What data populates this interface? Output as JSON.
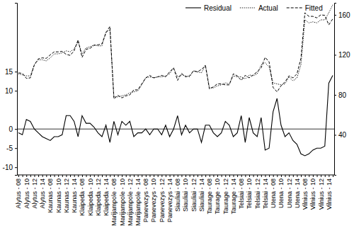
{
  "chart_data": {
    "type": "line",
    "categories": [
      "Alytus - 08",
      null,
      "Alytus - 10",
      null,
      "Alytus - 12",
      null,
      "Alytus - 14",
      null,
      "Kaunas - 08",
      null,
      "Kaunas - 10",
      null,
      "Kaunas - 12",
      null,
      "Kaunas - 14",
      null,
      "Klaipeda - 08",
      null,
      "Klaipeda - 10",
      null,
      "Klaipeda - 12",
      null,
      "Klaipeda - 14",
      null,
      "Marijampole - 08",
      null,
      "Marijampole - 10",
      null,
      "Marijampole - 12",
      null,
      "Marijampole - 14",
      null,
      "Panevezys - 08",
      null,
      "Panevezys - 10",
      null,
      "Panevezys - 12",
      null,
      "Panevezys - 14",
      null,
      "Siauliai - 08",
      null,
      "Siauliai - 10",
      null,
      "Siauliai - 12",
      null,
      "Siauliai - 14",
      null,
      "Taurage - 08",
      null,
      "Taurage - 10",
      null,
      "Taurage - 12",
      null,
      "Taurage - 14",
      null,
      "Telsiai - 08",
      null,
      "Telsiai - 10",
      null,
      "Telsiai - 12",
      null,
      "Telsiai - 14",
      null,
      "Utena - 08",
      null,
      "Utena - 10",
      null,
      "Utena - 12",
      null,
      "Utena - 14",
      null,
      "Vilnius - 08",
      null,
      "Vilnius - 10",
      null,
      "Vilnius - 12",
      null,
      "Vilnius - 14",
      null
    ],
    "series": [
      {
        "name": "Residual",
        "color": "#000000",
        "line_style": "solid",
        "values": [
          -1,
          -1.5,
          2.5,
          2,
          0,
          -1,
          -2,
          -2.5,
          -3,
          -2,
          -2,
          -1.5,
          3.5,
          3.5,
          2,
          -2,
          3.5,
          1.5,
          1.5,
          0.5,
          -1,
          -2,
          1,
          -3.5,
          2,
          -1.5,
          2,
          1,
          2,
          -2,
          -1,
          -1,
          0,
          -1.5,
          0,
          0,
          -1.5,
          1,
          -2,
          0,
          3.5,
          -1.5,
          1,
          -1,
          0,
          0,
          -3.5,
          1,
          1,
          -1,
          -2,
          -1,
          2,
          1,
          -2,
          -1,
          3.5,
          -3.5,
          3,
          -1,
          -2,
          3,
          -5.5,
          -5,
          4.5,
          8,
          1,
          -2,
          -1,
          -3,
          -4,
          -6.5,
          -7,
          -6.5,
          -5.5,
          -5,
          -5,
          -4.5,
          12,
          14
        ]
      },
      {
        "name": "Actual",
        "color": "#000000",
        "line_style": "dotted",
        "axis": "y2",
        "values": [
          101,
          100,
          99,
          99,
          110,
          115,
          115,
          114,
          117,
          121,
          121,
          122,
          124,
          123,
          126,
          133,
          121,
          127,
          128,
          130,
          129,
          129,
          143,
          145,
          78,
          78,
          79,
          80,
          82,
          83,
          84,
          90,
          97,
          98,
          97,
          98,
          98,
          99,
          101,
          107,
          98,
          100,
          99,
          98,
          104,
          103,
          102,
          110,
          87,
          87,
          89,
          90,
          92,
          91,
          99,
          98,
          98,
          96,
          100,
          99,
          101,
          110,
          112,
          108,
          92,
          91,
          90,
          91,
          98,
          94,
          97,
          110,
          155,
          152,
          153,
          152,
          155,
          155,
          162,
          170
        ]
      },
      {
        "name": "Fitted",
        "color": "#000000",
        "line_style": "dashed",
        "axis": "y2",
        "values": [
          102,
          101.5,
          96.5,
          97,
          110,
          116,
          117,
          116.5,
          120,
          123,
          123,
          123.5,
          120.5,
          119.5,
          124,
          135,
          117.5,
          125.5,
          126.5,
          129.5,
          130,
          131,
          142,
          148.5,
          76,
          79.5,
          77,
          79,
          80,
          85,
          85,
          91,
          97,
          99.5,
          97,
          98,
          99.5,
          98,
          103,
          107,
          94.5,
          101.5,
          98,
          99,
          104,
          103,
          105.5,
          109,
          86,
          88,
          91,
          91,
          90,
          90,
          101,
          99,
          94.5,
          99.5,
          97,
          100,
          103,
          107,
          117.5,
          113,
          87.5,
          83,
          89,
          93,
          99,
          97,
          101,
          116.5,
          162,
          158.5,
          158.5,
          157,
          160,
          159.5,
          150,
          156
        ]
      }
    ],
    "ylim": [
      -12,
      33
    ],
    "yticks": [
      -10,
      -5,
      0,
      10,
      15
    ],
    "y2lim": [
      0,
      172
    ],
    "y2ticks": [
      40,
      80,
      120,
      160
    ],
    "grid": false,
    "legend": "upper right"
  }
}
